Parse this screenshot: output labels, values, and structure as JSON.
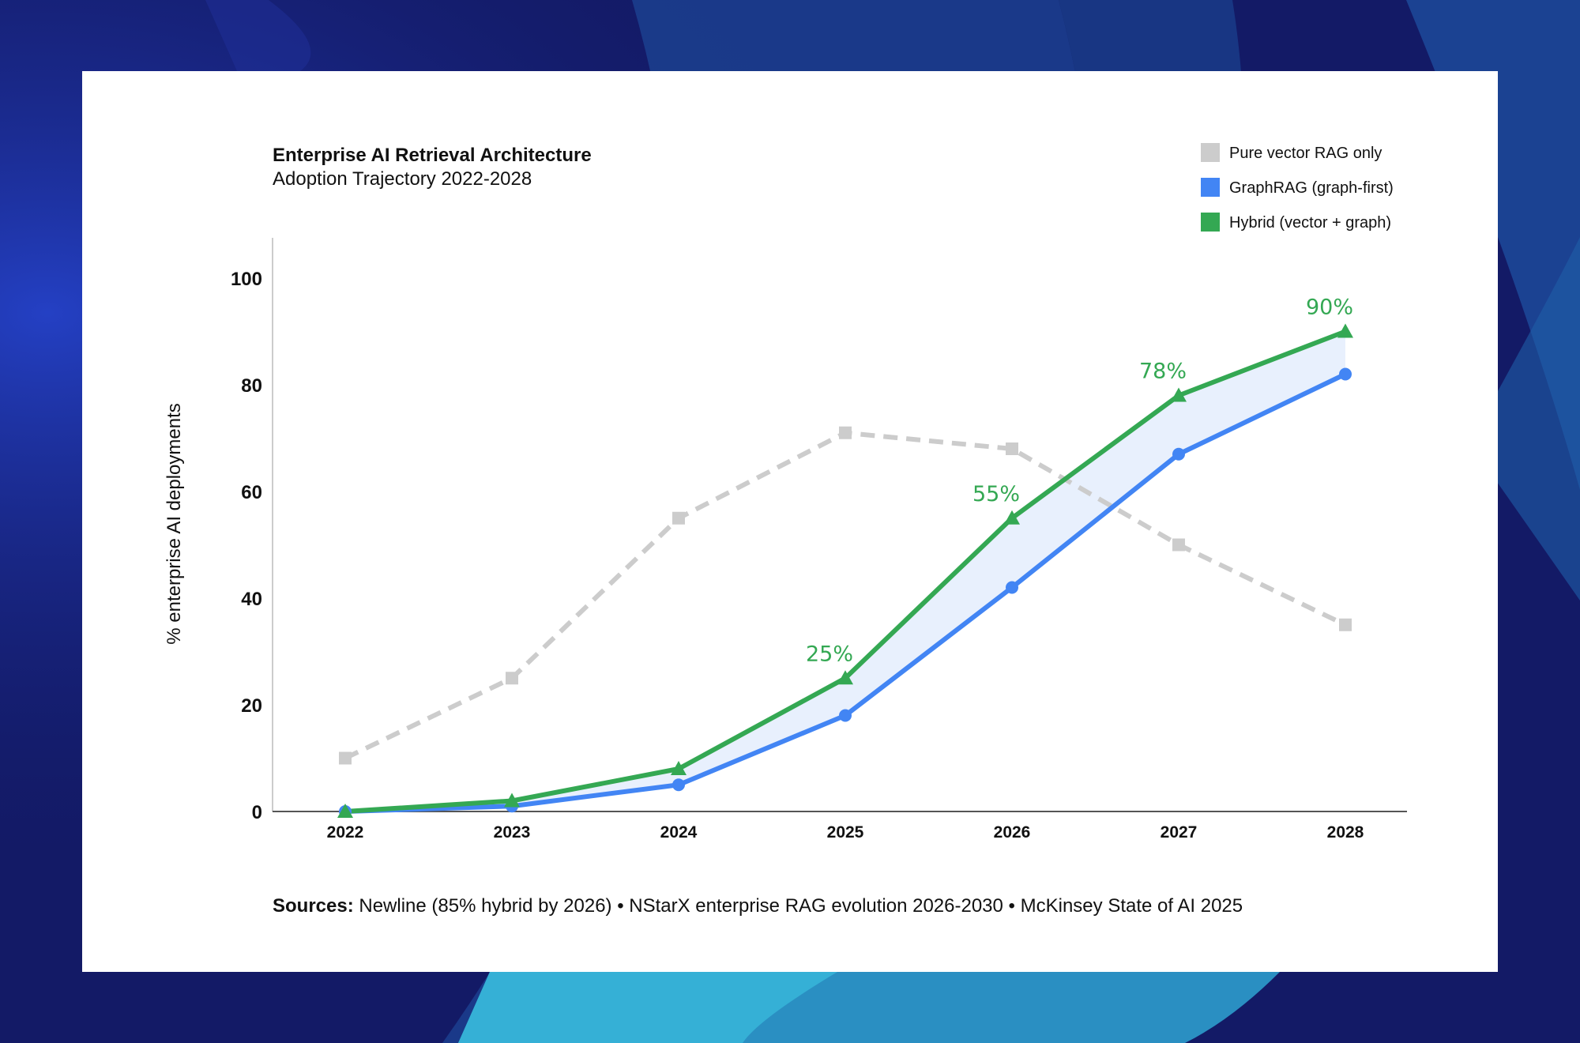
{
  "colors": {
    "background": "#131a66",
    "card": "#ffffff",
    "vector": "#cccccc",
    "graphrag": "#4285f4",
    "hybrid": "#34a853",
    "band": "#e8f0fd",
    "axis": "#555555"
  },
  "chart_data": {
    "type": "line",
    "title": "Enterprise AI Retrieval Architecture",
    "subtitle": "Adoption Trajectory 2022-2028",
    "ylabel": "% enterprise AI deployments",
    "xlabel": "",
    "x": [
      "2022",
      "2023",
      "2024",
      "2025",
      "2026",
      "2027",
      "2028"
    ],
    "ylim": [
      0,
      108
    ],
    "yticks": [
      "0",
      "20",
      "40",
      "60",
      "80",
      "100"
    ],
    "grid": false,
    "legend_position": "top-right",
    "series": [
      {
        "name": "Pure vector RAG only",
        "color": "#cccccc",
        "style": "dashed",
        "marker": "square",
        "values": [
          10,
          25,
          55,
          71,
          68,
          50,
          35
        ]
      },
      {
        "name": "GraphRAG (graph-first)",
        "color": "#4285f4",
        "style": "solid",
        "marker": "circle",
        "values": [
          0,
          1,
          5,
          18,
          42,
          67,
          82
        ]
      },
      {
        "name": "Hybrid (vector + graph)",
        "color": "#34a853",
        "style": "solid",
        "marker": "triangle",
        "values": [
          0,
          2,
          8,
          25,
          55,
          78,
          90
        ]
      }
    ],
    "annotations": [
      {
        "x": "2025",
        "y": 25,
        "text": "25%"
      },
      {
        "x": "2026",
        "y": 55,
        "text": "55%"
      },
      {
        "x": "2027",
        "y": 78,
        "text": "78%"
      },
      {
        "x": "2028",
        "y": 90,
        "text": "90%"
      }
    ]
  },
  "sources": {
    "label": "Sources:",
    "text": " Newline (85% hybrid by 2026) • NStarX enterprise RAG evolution 2026-2030 • McKinsey State of AI 2025"
  }
}
